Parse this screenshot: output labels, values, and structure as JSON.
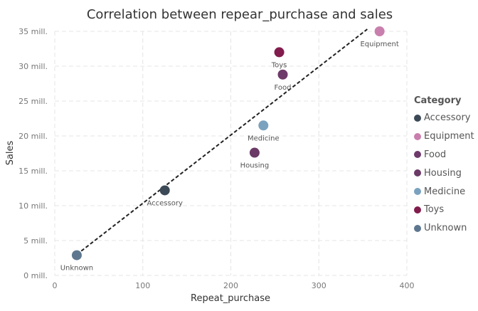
{
  "chart_data": {
    "type": "scatter",
    "title": "Correlation between repear_purchase and sales",
    "xlabel": "Repeat_purchase",
    "ylabel": "Sales",
    "xlim": [
      0,
      400
    ],
    "ylim": [
      0,
      35
    ],
    "x_ticks": [
      "0",
      "100",
      "200",
      "300",
      "400"
    ],
    "y_ticks": [
      "0 mill.",
      "5 mill.",
      "10 mill.",
      "15 mill.",
      "20 mill.",
      "25 mill.",
      "30 mill.",
      "35 mill."
    ],
    "grid": true,
    "trendline": {
      "style": "dashed",
      "x": [
        25,
        355
      ],
      "y": [
        3,
        35.3
      ]
    },
    "legend": {
      "title": "Category",
      "position": "right",
      "entries": [
        "Accessory",
        "Equipment",
        "Food",
        "Housing",
        "Medicine",
        "Toys",
        "Unknown"
      ]
    },
    "colors": {
      "Accessory": "#3c4a57",
      "Equipment": "#c97fae",
      "Food": "#6e3a6a",
      "Housing": "#6b3a66",
      "Medicine": "#7aa2bf",
      "Toys": "#821c4c",
      "Unknown": "#5e778f"
    },
    "points": [
      {
        "label": "Unknown",
        "x": 25,
        "y": 2.9
      },
      {
        "label": "Accessory",
        "x": 125,
        "y": 12.2
      },
      {
        "label": "Housing",
        "x": 227,
        "y": 17.6
      },
      {
        "label": "Medicine",
        "x": 237,
        "y": 21.5
      },
      {
        "label": "Toys",
        "x": 255,
        "y": 32.0
      },
      {
        "label": "Food",
        "x": 259,
        "y": 28.8
      },
      {
        "label": "Equipment",
        "x": 369,
        "y": 35.0
      }
    ]
  }
}
